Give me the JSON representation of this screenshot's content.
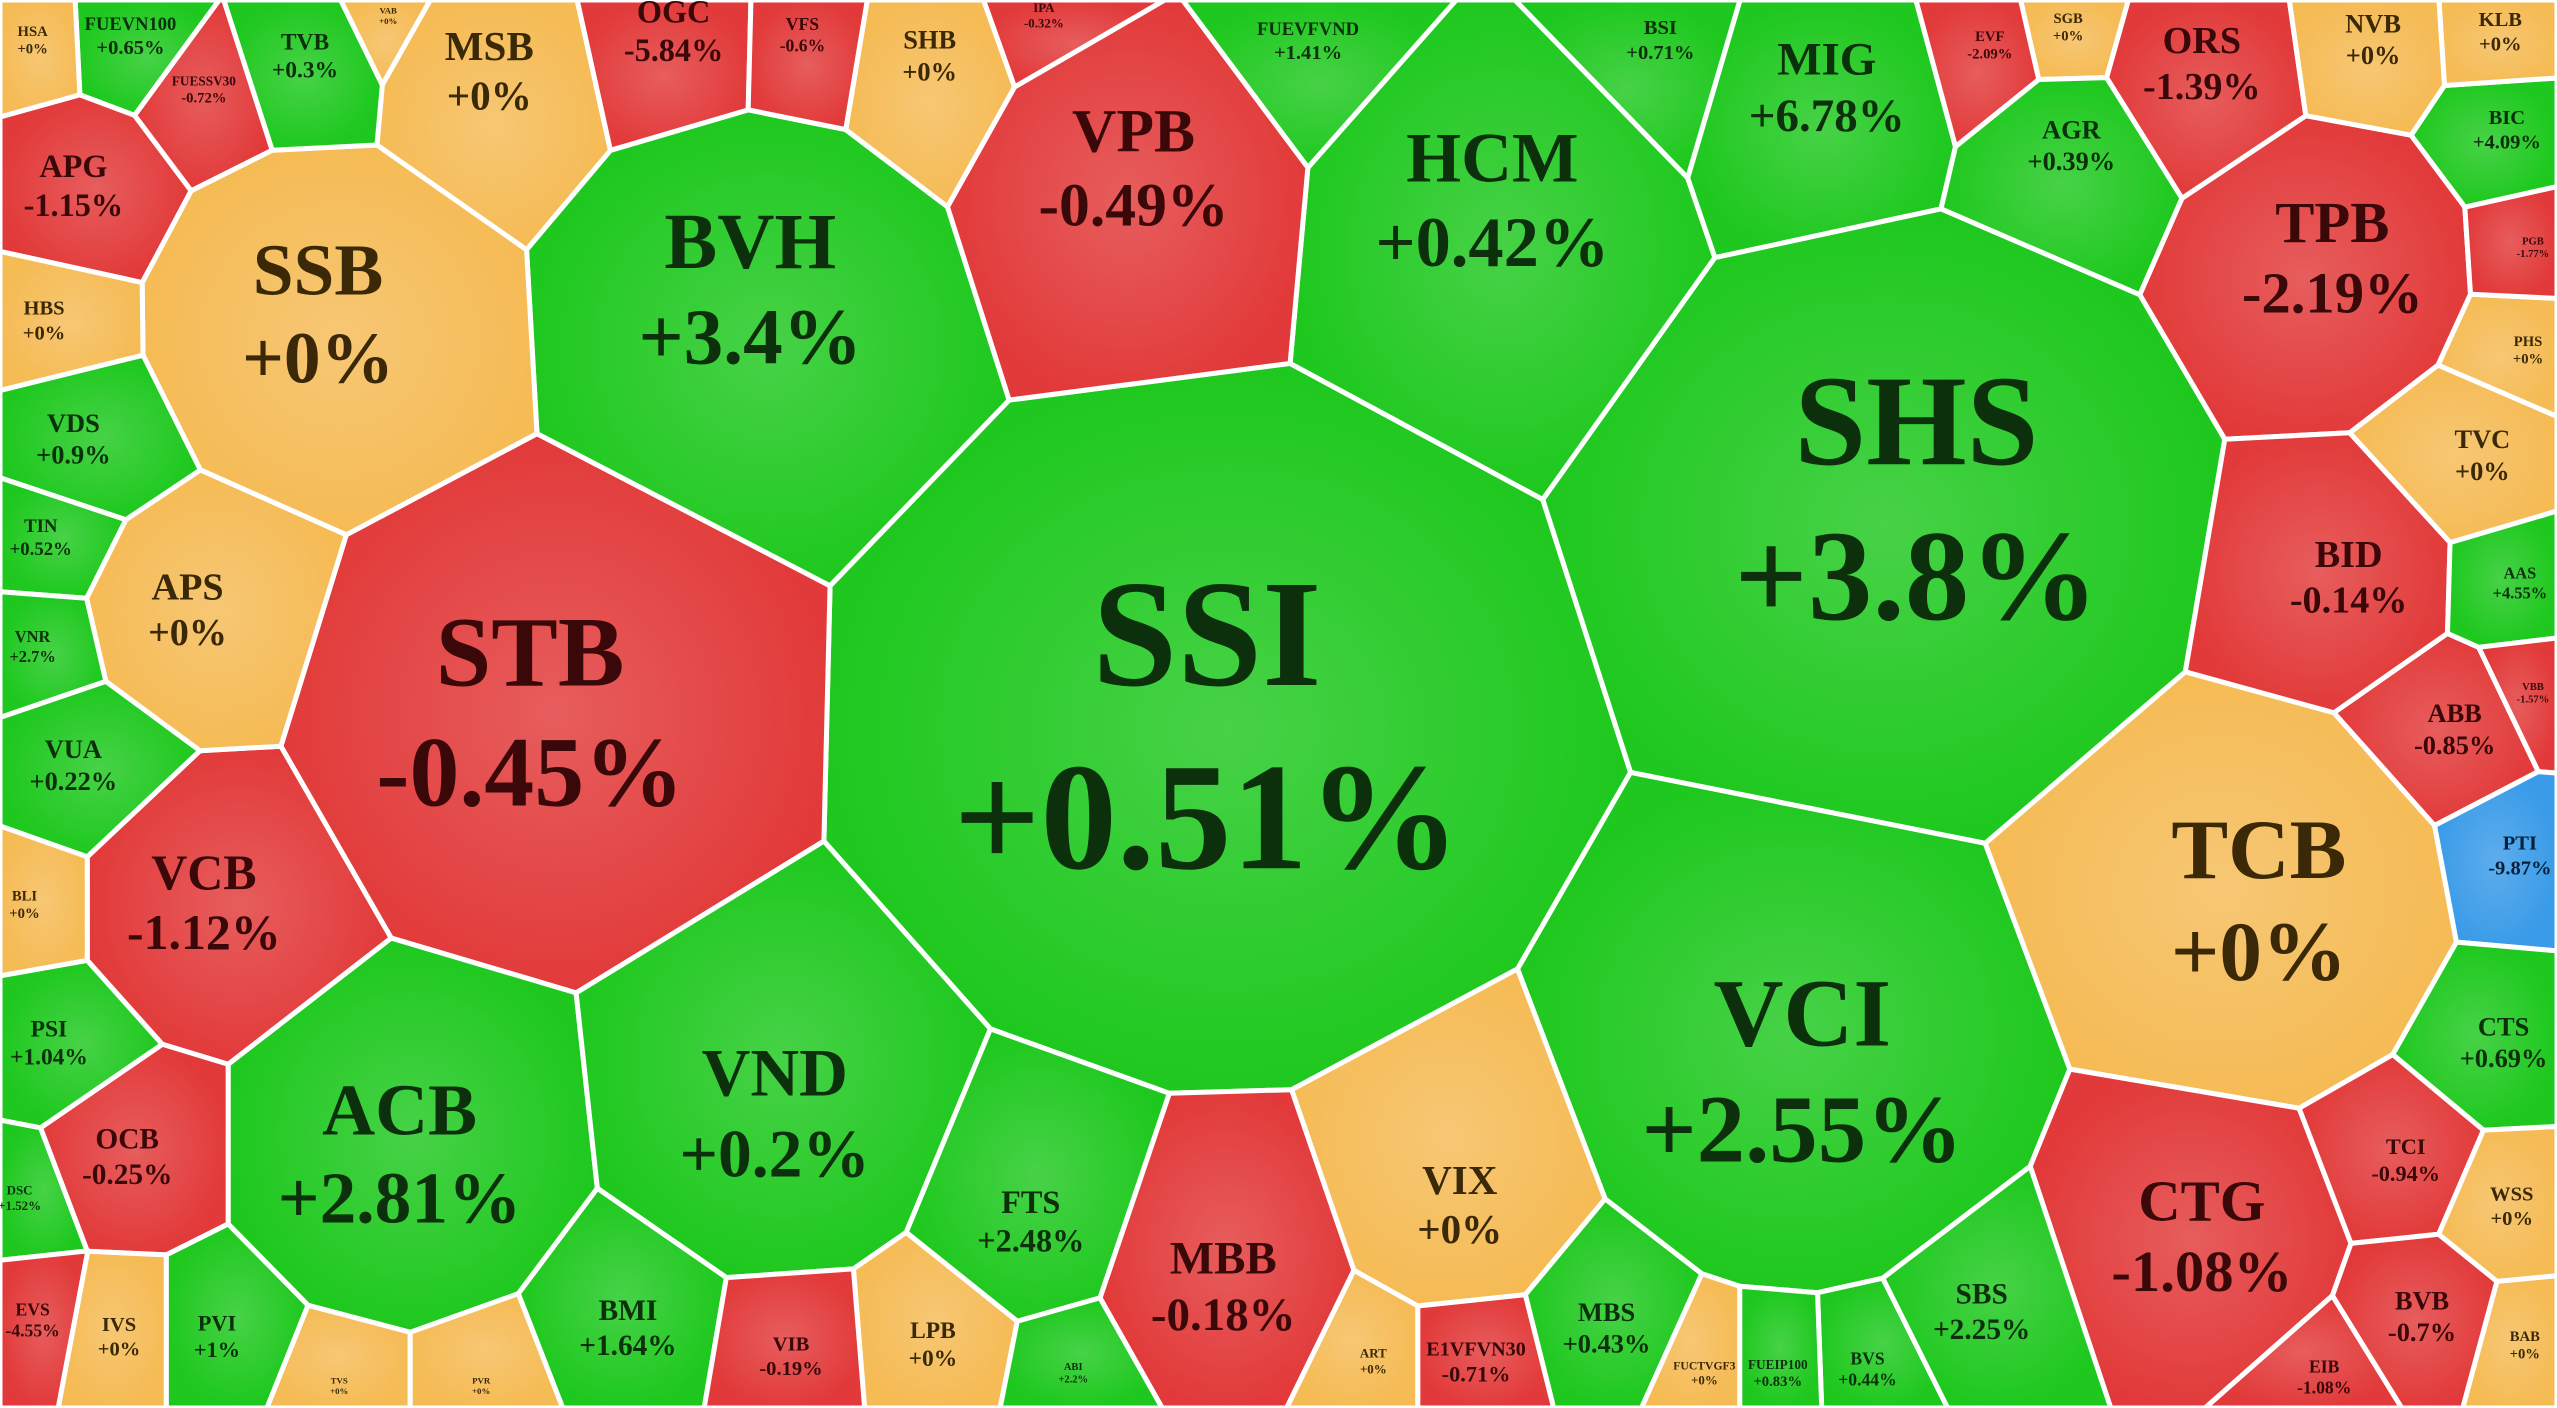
{
  "chart_data": {
    "type": "treemap",
    "categories": [
      "SSI",
      "SHS",
      "STB",
      "VCI",
      "TCB",
      "BVH",
      "ACB",
      "VND",
      "SSB",
      "HCM",
      "VPB",
      "CTG",
      "MBB",
      "VIX",
      "MIG",
      "TPB",
      "BID",
      "VCB",
      "MSB",
      "OGC",
      "SHB",
      "ORS",
      "APS",
      "OCB",
      "APG",
      "BMI",
      "MBS",
      "SBS",
      "FTS",
      "VDS",
      "HBS",
      "TIN",
      "VNR",
      "VUA",
      "BLI",
      "PSI",
      "DSC",
      "EVS",
      "IVS",
      "PVI",
      "LPB",
      "VIB",
      "ART",
      "E1VFVN30",
      "ABB",
      "AAS",
      "VBB",
      "PTI",
      "CTS",
      "TCI",
      "WSS",
      "BVB",
      "BAB",
      "EIB",
      "TVC",
      "PHS",
      "PGB",
      "BIC",
      "KLB",
      "NVB",
      "SGB",
      "EVF",
      "AGR",
      "BSI",
      "FUEVFVND",
      "VFS",
      "IPA",
      "TVB",
      "FUEVN100",
      "FUESSV30",
      "HSA",
      "VAB",
      "BVS",
      "FUEIP100",
      "FUCTVGF3",
      "ABI",
      "TVS",
      "PVR"
    ],
    "values": [
      0.51,
      3.8,
      -0.45,
      2.55,
      0,
      3.4,
      2.81,
      0.2,
      0,
      0.42,
      -0.49,
      -1.08,
      -0.18,
      0,
      6.78,
      -2.19,
      -0.14,
      -1.12,
      0,
      -5.84,
      0,
      -1.39,
      0,
      -0.25,
      -1.15,
      1.64,
      0.43,
      2.25,
      2.48,
      0.9,
      0,
      0.52,
      2.7,
      0.22,
      0,
      1.04,
      1.52,
      -4.55,
      0,
      1,
      0,
      -0.19,
      0,
      -0.71,
      -0.85,
      4.55,
      -1.57,
      -9.87,
      0.69,
      -0.94,
      0,
      -0.7,
      0,
      -1.08,
      0,
      0,
      -1.77,
      4.09,
      0,
      0,
      0,
      -2.09,
      0.39,
      0.71,
      1.41,
      -0.6,
      -0.32,
      0.3,
      0.65,
      -0.72,
      0,
      0,
      0.44,
      0.83,
      0,
      2.2,
      0,
      0
    ],
    "value_labels": [
      "+0.51%",
      "+3.8%",
      "-0.45%",
      "+2.55%",
      "+0%",
      "+3.4%",
      "+2.81%",
      "+0.2%",
      "+0%",
      "+0.42%",
      "-0.49%",
      "-1.08%",
      "-0.18%",
      "+0%",
      "+6.78%",
      "-2.19%",
      "-0.14%",
      "-1.12%",
      "+0%",
      "-5.84%",
      "+0%",
      "-1.39%",
      "+0%",
      "-0.25%",
      "-1.15%",
      "+1.64%",
      "+0.43%",
      "+2.25%",
      "+2.48%",
      "+0.9%",
      "+0%",
      "+0.52%",
      "+2.7%",
      "+0.22%",
      "+0%",
      "+1.04%",
      "+1.52%",
      "-4.55%",
      "+0%",
      "+1%",
      "+0%",
      "-0.19%",
      "+0%",
      "-0.71%",
      "-0.85%",
      "+4.55%",
      "-1.57%",
      "-9.87%",
      "+0.69%",
      "-0.94%",
      "+0%",
      "-0.7%",
      "+0%",
      "-1.08%",
      "+0%",
      "+0%",
      "-1.77%",
      "+4.09%",
      "+0%",
      "+0%",
      "+0%",
      "-2.09%",
      "+0.39%",
      "+0.71%",
      "+1.41%",
      "-0.6%",
      "-0.32%",
      "+0.3%",
      "+0.65%",
      "-0.72%",
      "+0%",
      "+0%",
      "+0.44%",
      "+0.83%",
      "+0%",
      "+2.2%",
      "+0%",
      "+0%"
    ],
    "colors": [
      "#1ec81e",
      "#1ec81e",
      "#e23a3a",
      "#1ec81e",
      "#f5bb55",
      "#1ec81e",
      "#1ec81e",
      "#1ec81e",
      "#f5bb55",
      "#1ec81e",
      "#e23a3a",
      "#e23a3a",
      "#e23a3a",
      "#f5bb55",
      "#1ec81e",
      "#e23a3a",
      "#e23a3a",
      "#e23a3a",
      "#f5bb55",
      "#e23a3a",
      "#f5bb55",
      "#e23a3a",
      "#f5bb55",
      "#e23a3a",
      "#e23a3a",
      "#1ec81e",
      "#1ec81e",
      "#1ec81e",
      "#1ec81e",
      "#1ec81e",
      "#f5bb55",
      "#1ec81e",
      "#1ec81e",
      "#1ec81e",
      "#f5bb55",
      "#1ec81e",
      "#1ec81e",
      "#e23a3a",
      "#f5bb55",
      "#1ec81e",
      "#f5bb55",
      "#e23a3a",
      "#f5bb55",
      "#e23a3a",
      "#e23a3a",
      "#1ec81e",
      "#e23a3a",
      "#3a9be8",
      "#1ec81e",
      "#e23a3a",
      "#f5bb55",
      "#e23a3a",
      "#f5bb55",
      "#e23a3a",
      "#f5bb55",
      "#f5bb55",
      "#e23a3a",
      "#1ec81e",
      "#f5bb55",
      "#f5bb55",
      "#f5bb55",
      "#e23a3a",
      "#1ec81e",
      "#1ec81e",
      "#1ec81e",
      "#e23a3a",
      "#e23a3a",
      "#1ec81e",
      "#1ec81e",
      "#e23a3a",
      "#f5bb55",
      "#f5bb55",
      "#1ec81e",
      "#1ec81e",
      "#f5bb55",
      "#1ec81e",
      "#f5bb55",
      "#f5bb55"
    ]
  }
}
